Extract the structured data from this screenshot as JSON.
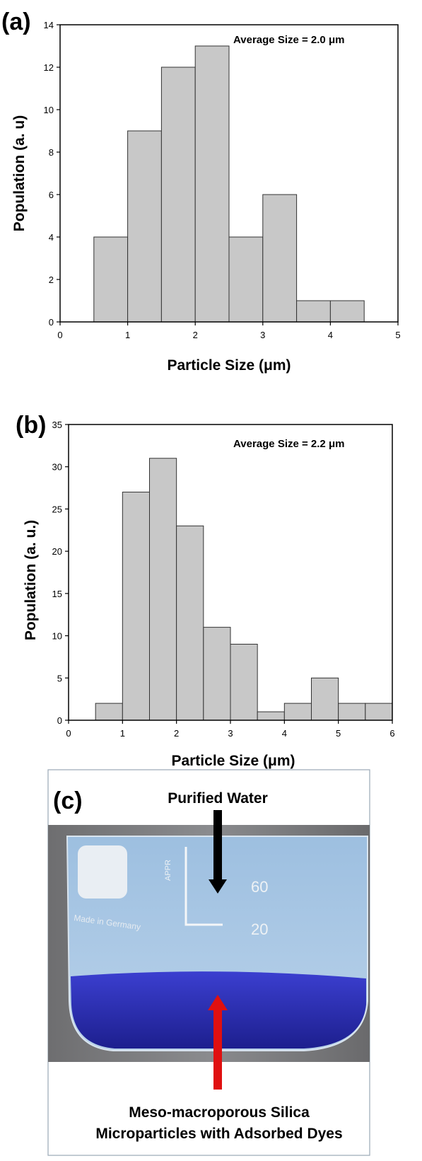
{
  "chart_data": [
    {
      "type": "bar",
      "panel_label": "(a)",
      "annotation": "Average Size = 2.0 μm",
      "xlabel": "Particle Size (μm)",
      "ylabel": "Population (a. u)",
      "xlim": [
        0,
        5
      ],
      "ylim": [
        0,
        14
      ],
      "xticks": [
        "0",
        "1",
        "2",
        "3",
        "4",
        "5"
      ],
      "yticks": [
        "0",
        "2",
        "4",
        "6",
        "8",
        "10",
        "12",
        "14"
      ],
      "bins": [
        {
          "start": 0.5,
          "end": 1.0,
          "value": 4
        },
        {
          "start": 1.0,
          "end": 1.5,
          "value": 9
        },
        {
          "start": 1.5,
          "end": 2.0,
          "value": 12
        },
        {
          "start": 2.0,
          "end": 2.5,
          "value": 13
        },
        {
          "start": 2.5,
          "end": 3.0,
          "value": 4
        },
        {
          "start": 3.0,
          "end": 3.5,
          "value": 6
        },
        {
          "start": 3.5,
          "end": 4.0,
          "value": 1
        },
        {
          "start": 4.0,
          "end": 4.5,
          "value": 1
        }
      ],
      "bar_color": "#c8c8c8"
    },
    {
      "type": "bar",
      "panel_label": "(b)",
      "annotation": "Average Size = 2.2 μm",
      "xlabel": "Particle Size (μm)",
      "ylabel": "Population (a. u.)",
      "xlim": [
        0,
        6
      ],
      "ylim": [
        0,
        35
      ],
      "xticks": [
        "0",
        "1",
        "2",
        "3",
        "4",
        "5",
        "6"
      ],
      "yticks": [
        "0",
        "5",
        "10",
        "15",
        "20",
        "25",
        "30",
        "35"
      ],
      "bins": [
        {
          "start": 0.5,
          "end": 1.0,
          "value": 2
        },
        {
          "start": 1.0,
          "end": 1.5,
          "value": 27
        },
        {
          "start": 1.5,
          "end": 2.0,
          "value": 31
        },
        {
          "start": 2.0,
          "end": 2.5,
          "value": 23
        },
        {
          "start": 2.5,
          "end": 3.0,
          "value": 11
        },
        {
          "start": 3.0,
          "end": 3.5,
          "value": 9
        },
        {
          "start": 3.5,
          "end": 4.0,
          "value": 1
        },
        {
          "start": 4.0,
          "end": 4.5,
          "value": 2
        },
        {
          "start": 4.5,
          "end": 5.0,
          "value": 5
        },
        {
          "start": 5.0,
          "end": 5.5,
          "value": 2
        },
        {
          "start": 5.5,
          "end": 6.0,
          "value": 2
        }
      ],
      "bar_color": "#c8c8c8"
    }
  ],
  "photo": {
    "panel_label": "(c)",
    "top_caption": "Purified Water",
    "bottom_caption_line1": "Meso-macroporous Silica",
    "bottom_caption_line2": "Microparticles with Adsorbed Dyes",
    "beaker_marks": [
      "60",
      "20"
    ],
    "beaker_brand": "Made in Germany",
    "beaker_text": "APPR",
    "colors": {
      "water": "#a9c9e6",
      "dye": "#2a2fb8",
      "top_arrow": "#000000",
      "bottom_arrow": "#e01010"
    }
  }
}
